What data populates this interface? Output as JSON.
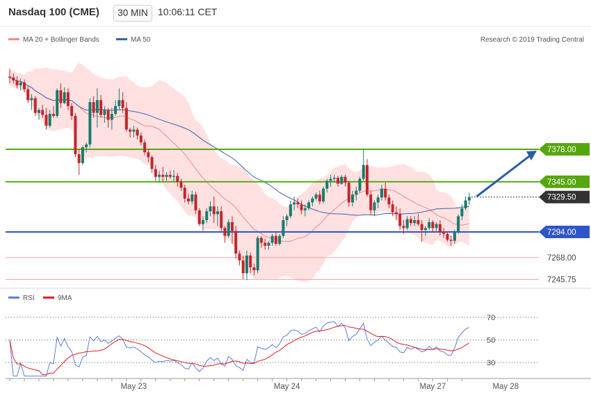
{
  "header": {
    "instrument": "Nasdaq 100 (CME)",
    "timeframe": "30 MIN",
    "time": "10:06:11 CET"
  },
  "legend_main": {
    "items": [
      {
        "label": "MA 20 + Bollinger Bands",
        "color": "#f08a8a"
      },
      {
        "label": "MA 50",
        "color": "#3b63a8"
      }
    ],
    "copyright": "Research © 2019 Trading Central"
  },
  "legend_rsi": {
    "items": [
      {
        "label": "RSI",
        "color": "#5b7fd9"
      },
      {
        "label": "9MA",
        "color": "#e02020"
      }
    ]
  },
  "colors": {
    "up_candle": "#1a7a6e",
    "down_candle": "#c0272d",
    "green_level": "#56a70e",
    "blue_level": "#2f56c8",
    "red_level": "#f0a0a0",
    "last_price": "#333333",
    "arrow": "#2b5ca8",
    "band_fill": "#ffe1e1"
  },
  "chart_data": {
    "type": "candlestick",
    "price_levels": [
      {
        "value": 7378.0,
        "label": "7378.00",
        "kind": "resistance",
        "color": "#56a70e"
      },
      {
        "value": 7345.0,
        "label": "7345.00",
        "kind": "resistance",
        "color": "#56a70e"
      },
      {
        "value": 7329.5,
        "label": "7329.50",
        "kind": "last",
        "color": "#333333"
      },
      {
        "value": 7294.0,
        "label": "7294.00",
        "kind": "pivot",
        "color": "#2f56c8"
      },
      {
        "value": 7268.0,
        "label": "7268.00",
        "kind": "support",
        "color": "#f0a0a0"
      },
      {
        "value": 7245.75,
        "label": "7245.75",
        "kind": "support",
        "color": "#f0a0a0"
      }
    ],
    "x_labels": [
      "May 23",
      "May 24",
      "May 27",
      "May 28"
    ],
    "candles": [
      [
        7452,
        7460,
        7445,
        7451
      ],
      [
        7451,
        7455,
        7445,
        7448
      ],
      [
        7448,
        7452,
        7440,
        7443
      ],
      [
        7443,
        7450,
        7438,
        7446
      ],
      [
        7446,
        7449,
        7436,
        7439
      ],
      [
        7439,
        7442,
        7425,
        7428
      ],
      [
        7428,
        7434,
        7418,
        7430
      ],
      [
        7430,
        7432,
        7412,
        7415
      ],
      [
        7415,
        7420,
        7408,
        7418
      ],
      [
        7418,
        7423,
        7410,
        7413
      ],
      [
        7413,
        7420,
        7398,
        7402
      ],
      [
        7402,
        7418,
        7400,
        7414
      ],
      [
        7414,
        7422,
        7410,
        7412
      ],
      [
        7412,
        7440,
        7410,
        7438
      ],
      [
        7438,
        7445,
        7420,
        7425
      ],
      [
        7425,
        7441,
        7424,
        7436
      ],
      [
        7436,
        7440,
        7418,
        7422
      ],
      [
        7422,
        7425,
        7408,
        7412
      ],
      [
        7412,
        7415,
        7370,
        7373
      ],
      [
        7373,
        7378,
        7352,
        7364
      ],
      [
        7364,
        7382,
        7362,
        7380
      ],
      [
        7380,
        7385,
        7375,
        7383
      ],
      [
        7383,
        7430,
        7380,
        7426
      ],
      [
        7426,
        7432,
        7410,
        7415
      ],
      [
        7415,
        7440,
        7400,
        7428
      ],
      [
        7428,
        7433,
        7410,
        7413
      ],
      [
        7413,
        7422,
        7405,
        7418
      ],
      [
        7418,
        7420,
        7400,
        7408
      ],
      [
        7408,
        7420,
        7398,
        7414
      ],
      [
        7414,
        7428,
        7412,
        7422
      ],
      [
        7422,
        7440,
        7418,
        7428
      ],
      [
        7428,
        7436,
        7415,
        7420
      ],
      [
        7420,
        7426,
        7396,
        7398
      ],
      [
        7398,
        7400,
        7390,
        7396
      ],
      [
        7396,
        7402,
        7390,
        7398
      ],
      [
        7398,
        7400,
        7388,
        7392
      ],
      [
        7392,
        7395,
        7382,
        7385
      ],
      [
        7385,
        7388,
        7372,
        7375
      ],
      [
        7375,
        7378,
        7365,
        7370
      ],
      [
        7370,
        7372,
        7354,
        7358
      ],
      [
        7358,
        7362,
        7346,
        7350
      ],
      [
        7350,
        7356,
        7344,
        7352
      ],
      [
        7352,
        7360,
        7345,
        7350
      ],
      [
        7350,
        7355,
        7346,
        7352
      ],
      [
        7352,
        7356,
        7348,
        7350
      ],
      [
        7350,
        7357,
        7345,
        7351
      ],
      [
        7351,
        7354,
        7340,
        7345
      ],
      [
        7345,
        7348,
        7336,
        7339
      ],
      [
        7339,
        7342,
        7324,
        7328
      ],
      [
        7328,
        7333,
        7322,
        7325
      ],
      [
        7325,
        7336,
        7322,
        7332
      ],
      [
        7332,
        7335,
        7312,
        7316
      ],
      [
        7316,
        7318,
        7300,
        7302
      ],
      [
        7302,
        7310,
        7295,
        7306
      ],
      [
        7306,
        7318,
        7303,
        7315
      ],
      [
        7315,
        7325,
        7310,
        7320
      ],
      [
        7320,
        7330,
        7303,
        7312
      ],
      [
        7312,
        7320,
        7300,
        7315
      ],
      [
        7315,
        7320,
        7295,
        7298
      ],
      [
        7298,
        7300,
        7283,
        7290
      ],
      [
        7290,
        7307,
        7288,
        7304
      ],
      [
        7304,
        7310,
        7282,
        7295
      ],
      [
        7295,
        7300,
        7267,
        7272
      ],
      [
        7272,
        7275,
        7260,
        7265
      ],
      [
        7265,
        7270,
        7246,
        7252
      ],
      [
        7252,
        7275,
        7245,
        7270
      ],
      [
        7270,
        7273,
        7252,
        7258
      ],
      [
        7258,
        7262,
        7250,
        7255
      ],
      [
        7255,
        7290,
        7252,
        7288
      ],
      [
        7288,
        7290,
        7278,
        7283
      ],
      [
        7283,
        7287,
        7276,
        7280
      ],
      [
        7280,
        7285,
        7276,
        7283
      ],
      [
        7283,
        7292,
        7280,
        7290
      ],
      [
        7290,
        7294,
        7280,
        7282
      ],
      [
        7282,
        7292,
        7280,
        7290
      ],
      [
        7290,
        7310,
        7288,
        7306
      ],
      [
        7306,
        7312,
        7300,
        7310
      ],
      [
        7310,
        7326,
        7308,
        7322
      ],
      [
        7322,
        7330,
        7316,
        7324
      ],
      [
        7324,
        7328,
        7318,
        7322
      ],
      [
        7322,
        7326,
        7312,
        7316
      ],
      [
        7316,
        7322,
        7310,
        7318
      ],
      [
        7318,
        7326,
        7316,
        7324
      ],
      [
        7324,
        7330,
        7320,
        7328
      ],
      [
        7328,
        7334,
        7326,
        7332
      ],
      [
        7332,
        7336,
        7322,
        7325
      ],
      [
        7325,
        7340,
        7323,
        7338
      ],
      [
        7338,
        7348,
        7334,
        7346
      ],
      [
        7346,
        7352,
        7340,
        7348
      ],
      [
        7348,
        7352,
        7344,
        7349
      ],
      [
        7349,
        7351,
        7340,
        7343
      ],
      [
        7343,
        7352,
        7342,
        7350
      ],
      [
        7350,
        7352,
        7340,
        7344
      ],
      [
        7344,
        7346,
        7320,
        7324
      ],
      [
        7324,
        7336,
        7320,
        7332
      ],
      [
        7332,
        7340,
        7326,
        7336
      ],
      [
        7336,
        7350,
        7334,
        7348
      ],
      [
        7348,
        7378,
        7346,
        7362
      ],
      [
        7362,
        7368,
        7330,
        7332
      ],
      [
        7332,
        7336,
        7312,
        7316
      ],
      [
        7316,
        7326,
        7310,
        7324
      ],
      [
        7324,
        7332,
        7318,
        7329
      ],
      [
        7329,
        7342,
        7326,
        7338
      ],
      [
        7338,
        7344,
        7326,
        7329
      ],
      [
        7329,
        7332,
        7318,
        7322
      ],
      [
        7322,
        7326,
        7310,
        7314
      ],
      [
        7314,
        7320,
        7306,
        7312
      ],
      [
        7312,
        7318,
        7296,
        7300
      ],
      [
        7300,
        7306,
        7292,
        7298
      ],
      [
        7298,
        7310,
        7296,
        7307
      ],
      [
        7307,
        7310,
        7300,
        7303
      ],
      [
        7303,
        7310,
        7300,
        7306
      ],
      [
        7306,
        7312,
        7300,
        7302
      ],
      [
        7302,
        7306,
        7284,
        7296
      ],
      [
        7296,
        7300,
        7290,
        7298
      ],
      [
        7298,
        7308,
        7296,
        7304
      ],
      [
        7304,
        7306,
        7294,
        7298
      ],
      [
        7298,
        7304,
        7294,
        7302
      ],
      [
        7302,
        7306,
        7290,
        7294
      ],
      [
        7294,
        7298,
        7288,
        7292
      ],
      [
        7292,
        7294,
        7284,
        7286
      ],
      [
        7286,
        7290,
        7280,
        7285
      ],
      [
        7285,
        7296,
        7282,
        7294
      ],
      [
        7294,
        7312,
        7292,
        7310
      ],
      [
        7310,
        7322,
        7306,
        7318
      ],
      [
        7318,
        7330,
        7316,
        7326
      ],
      [
        7326,
        7334,
        7322,
        7329.5
      ]
    ],
    "annotations": [
      {
        "type": "arrow",
        "from": [
          128,
          7330
        ],
        "to": [
          139,
          7378
        ],
        "text": ""
      }
    ]
  }
}
